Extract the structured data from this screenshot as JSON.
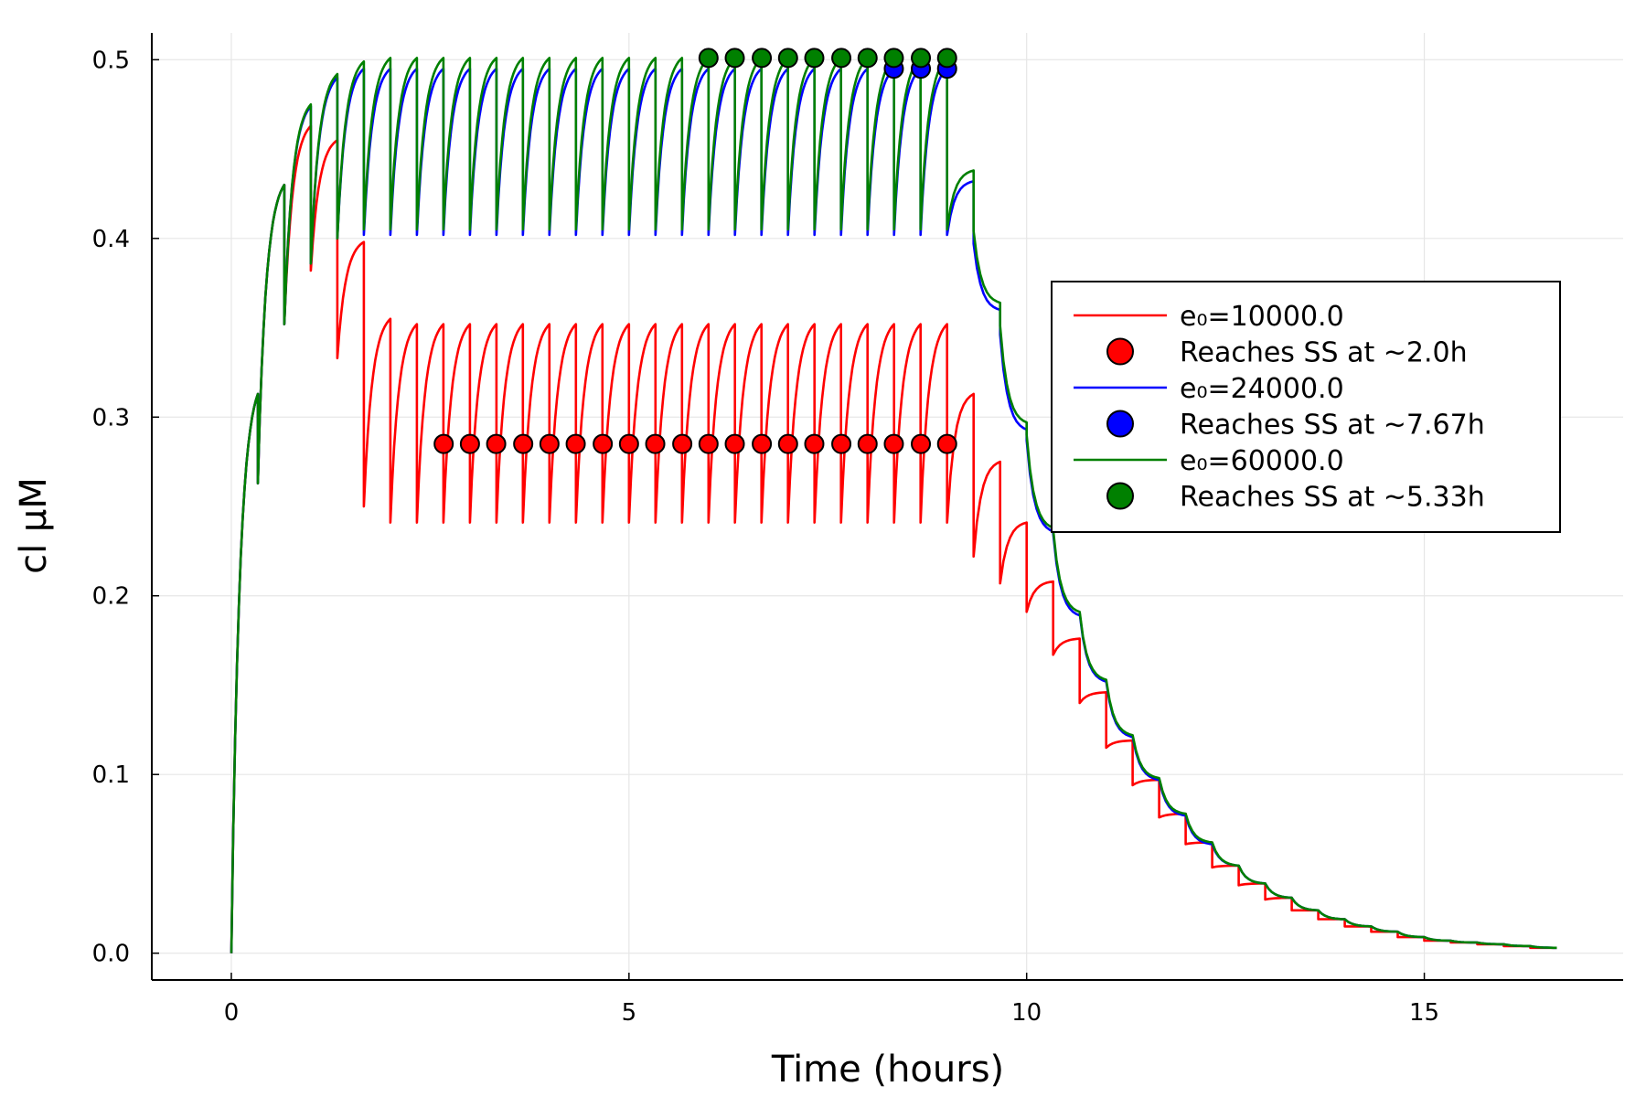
{
  "chart_data": {
    "type": "line",
    "title": "",
    "xlabel": "Time (hours)",
    "ylabel": "cl μM",
    "xlim": [
      -1,
      17.5
    ],
    "ylim": [
      -0.015,
      0.515
    ],
    "xticks": [
      0,
      5,
      10,
      15
    ],
    "xtick_labels": [
      "0",
      "5",
      "10",
      "15"
    ],
    "yticks": [
      0.0,
      0.1,
      0.2,
      0.3,
      0.4,
      0.5
    ],
    "ytick_labels": [
      "0.0",
      "0.1",
      "0.2",
      "0.3",
      "0.4",
      "0.5"
    ],
    "grid": true,
    "legend_position": "right",
    "model": {
      "dose_interval_hours": 0.3333,
      "dosing_end_hours": 9.0,
      "end_time_hours": 16.8,
      "terminal_decay_rate": 0.7
    },
    "series": [
      {
        "name": "e₀=10000.0",
        "color": "#ff0000",
        "ss_peak": 0.352,
        "ss_trough": 0.241,
        "early_peaks": [
          0.313,
          0.43,
          0.463,
          0.455,
          0.398,
          0.355
        ],
        "early_troughs": [
          0.263,
          0.352,
          0.382,
          0.333,
          0.25,
          0.241
        ],
        "washout_peaks": [
          0.313,
          0.275,
          0.241,
          0.208,
          0.176,
          0.146,
          0.119,
          0.097,
          0.078,
          0.062,
          0.049,
          0.039,
          0.031,
          0.024,
          0.019,
          0.015,
          0.012,
          0.009,
          0.007,
          0.006,
          0.005,
          0.004,
          0.003
        ],
        "washout_troughs": [
          0.222,
          0.207,
          0.191,
          0.167,
          0.14,
          0.115,
          0.094,
          0.076,
          0.061,
          0.048,
          0.038,
          0.03,
          0.024,
          0.019,
          0.015,
          0.012,
          0.009,
          0.007,
          0.006,
          0.005,
          0.004,
          0.003
        ]
      },
      {
        "name": "e₀=24000.0",
        "color": "#0000ff",
        "ss_peak": 0.495,
        "ss_trough": 0.402,
        "early_peaks": [
          0.313,
          0.43,
          0.474,
          0.49,
          0.495
        ],
        "early_troughs": [
          0.263,
          0.352,
          0.386,
          0.4,
          0.402
        ],
        "washout_peaks": [
          0.432,
          0.36,
          0.293,
          0.236,
          0.189,
          0.152,
          0.121,
          0.097,
          0.077,
          0.061,
          0.049,
          0.039,
          0.031,
          0.024,
          0.019,
          0.015,
          0.012,
          0.009,
          0.007,
          0.006,
          0.005,
          0.004,
          0.003
        ],
        "washout_troughs": [
          0.397,
          0.346,
          0.287,
          0.235,
          0.19,
          0.152,
          0.121,
          0.097,
          0.077,
          0.061,
          0.049,
          0.039,
          0.031,
          0.024,
          0.019,
          0.015,
          0.012,
          0.009,
          0.007,
          0.006,
          0.005,
          0.004,
          0.003
        ]
      },
      {
        "name": "e₀=60000.0",
        "color": "#008000",
        "ss_peak": 0.501,
        "ss_trough": 0.405,
        "early_peaks": [
          0.313,
          0.43,
          0.475,
          0.492,
          0.499,
          0.501
        ],
        "early_troughs": [
          0.263,
          0.352,
          0.386,
          0.4,
          0.405
        ],
        "washout_peaks": [
          0.438,
          0.364,
          0.297,
          0.238,
          0.191,
          0.153,
          0.122,
          0.098,
          0.078,
          0.062,
          0.049,
          0.039,
          0.031,
          0.024,
          0.019,
          0.015,
          0.012,
          0.009,
          0.007,
          0.006,
          0.005,
          0.004,
          0.003
        ],
        "washout_troughs": [
          0.404,
          0.351,
          0.29,
          0.237,
          0.191,
          0.153,
          0.122,
          0.098,
          0.078,
          0.062,
          0.049,
          0.039,
          0.031,
          0.024,
          0.019,
          0.015,
          0.012,
          0.009,
          0.007,
          0.006,
          0.005,
          0.004,
          0.003
        ]
      }
    ],
    "ss_markers": [
      {
        "name": "Reaches SS at ~2.0h",
        "color": "#ff0000",
        "y": 0.285,
        "x": [
          2.67,
          3.0,
          3.33,
          3.67,
          4.0,
          4.33,
          4.67,
          5.0,
          5.33,
          5.67,
          6.0,
          6.33,
          6.67,
          7.0,
          7.33,
          7.67,
          8.0,
          8.33,
          8.67,
          9.0
        ]
      },
      {
        "name": "Reaches SS at ~7.67h",
        "color": "#0000ff",
        "y": 0.495,
        "x": [
          8.33,
          8.67,
          9.0
        ]
      },
      {
        "name": "Reaches SS at ~5.33h",
        "color": "#008000",
        "y": 0.501,
        "x": [
          6.0,
          6.33,
          6.67,
          7.0,
          7.33,
          7.67,
          8.0,
          8.33,
          8.67,
          9.0
        ]
      }
    ]
  },
  "legend": {
    "entries": [
      {
        "label": "e₀=10000.0",
        "kind": "line",
        "color": "#ff0000"
      },
      {
        "label": "Reaches SS at ~2.0h",
        "kind": "marker",
        "color": "#ff0000"
      },
      {
        "label": "e₀=24000.0",
        "kind": "line",
        "color": "#0000ff"
      },
      {
        "label": "Reaches SS at ~7.67h",
        "kind": "marker",
        "color": "#0000ff"
      },
      {
        "label": "e₀=60000.0",
        "kind": "line",
        "color": "#008000"
      },
      {
        "label": "Reaches SS at ~5.33h",
        "kind": "marker",
        "color": "#008000"
      }
    ]
  }
}
